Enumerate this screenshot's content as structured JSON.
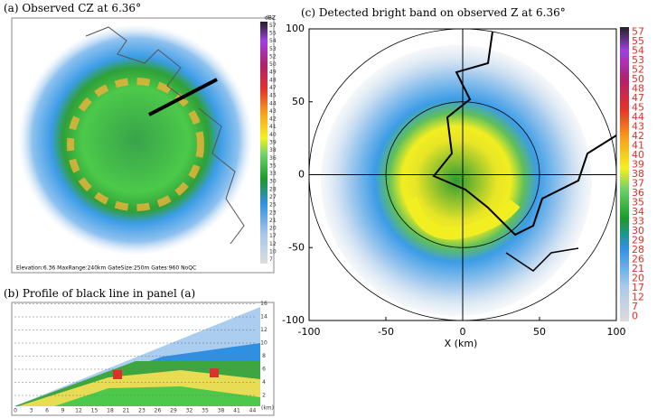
{
  "panel_a": {
    "title": "(a) Observed CZ at  6.36°",
    "colorbar_unit": "dBZ",
    "colorbar_labels": [
      57,
      55,
      54,
      53,
      52,
      50,
      49,
      48,
      47,
      45,
      44,
      43,
      42,
      41,
      40,
      39,
      38,
      36,
      35,
      33,
      30,
      28,
      27,
      25,
      23,
      21,
      20,
      17,
      12,
      10,
      7
    ],
    "footer": "Elevation:6.36  MaxRange:240km  GateSize:250m  Gates:960  NoQC"
  },
  "panel_b": {
    "title": "(b) Profile of black line in panel (a)",
    "x_labels": [
      0,
      3,
      6,
      9,
      12,
      15,
      18,
      21,
      23,
      26,
      29,
      32,
      35,
      38,
      41,
      44
    ],
    "x_unit": "(km)",
    "y_labels": [
      2,
      4,
      6,
      8,
      10,
      12,
      14,
      16
    ]
  },
  "chart_data": {
    "type": "polar-image",
    "title": "(c) Detected bright band on observed Z at  6.36°",
    "x_label": "X (km)",
    "xlim": [
      -100,
      100
    ],
    "ylim": [
      -100,
      100
    ],
    "xticks": [
      -100,
      -50,
      0,
      50,
      100
    ],
    "yticks": [
      -100,
      -50,
      0,
      50,
      100
    ],
    "colorbar_labels": [
      57,
      55,
      54,
      53,
      52,
      50,
      48,
      47,
      45,
      44,
      43,
      42,
      41,
      40,
      39,
      38,
      37,
      36,
      35,
      34,
      33,
      30,
      29,
      28,
      26,
      21,
      20,
      17,
      12,
      7,
      0
    ]
  }
}
